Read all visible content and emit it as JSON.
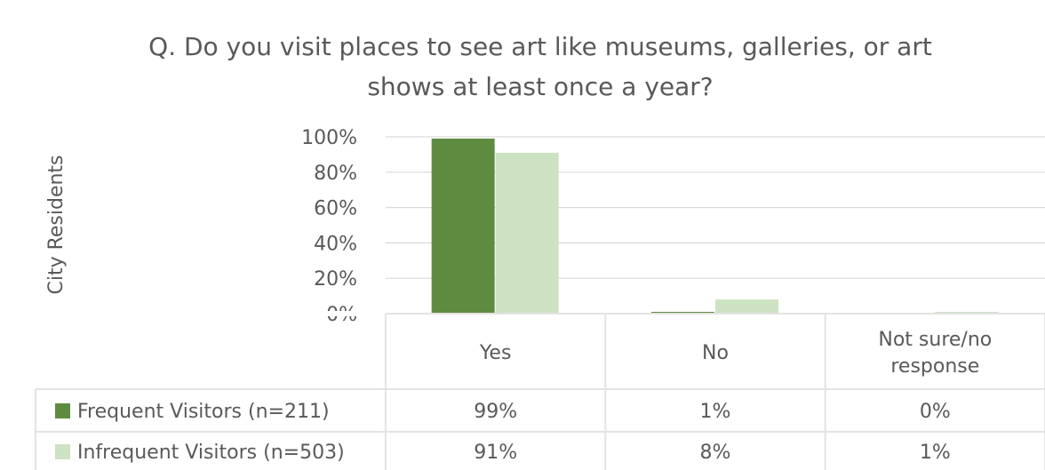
{
  "chart_data": {
    "type": "bar",
    "title": "Q. Do you visit places to see art like museums, galleries, or art shows at least once a year?",
    "title_lines": [
      "Q. Do you visit places to see art like museums, galleries, or art",
      "shows at least once a year?"
    ],
    "ylabel": "City Residents",
    "xlabel": "",
    "ylim": [
      0,
      100
    ],
    "yticks": [
      0,
      20,
      40,
      60,
      80,
      100
    ],
    "ytick_labels": [
      "0%",
      "20%",
      "40%",
      "60%",
      "80%",
      "100%"
    ],
    "grid": true,
    "legend_placement": "data-table",
    "categories": [
      "Yes",
      "No",
      "Not sure/no response"
    ],
    "category_lines": [
      [
        "Yes"
      ],
      [
        "No"
      ],
      [
        "Not sure/no",
        "response"
      ]
    ],
    "series": [
      {
        "name": "Frequent Visitors (n=211)",
        "color": "#5f8b41",
        "values": [
          99,
          1,
          0
        ],
        "labels": [
          "99%",
          "1%",
          "0%"
        ]
      },
      {
        "name": "Infrequent Visitors (n=503)",
        "color": "#cde2c2",
        "values": [
          91,
          8,
          1
        ],
        "labels": [
          "91%",
          "8%",
          "1%"
        ]
      }
    ],
    "colors": {
      "text": "#595959",
      "grid": "#d9d9d9",
      "table_border": "#e3e3e3"
    }
  }
}
